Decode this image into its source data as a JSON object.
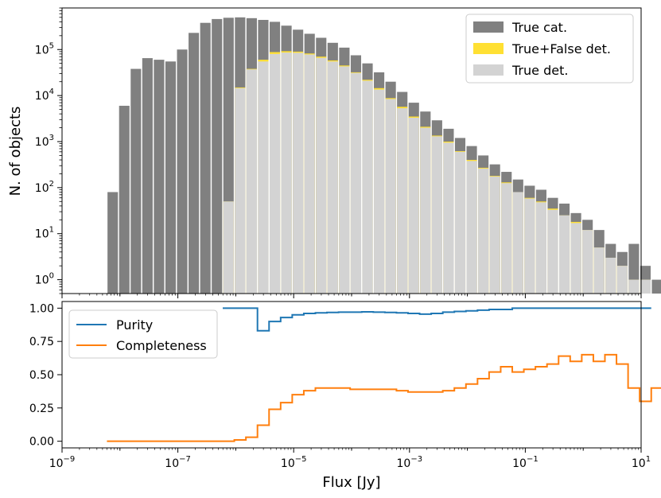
{
  "chart_data": [
    {
      "type": "bar",
      "title": "",
      "xlabel": "",
      "ylabel": "N. of objects",
      "xscale": "log",
      "yscale": "log",
      "xlim": [
        1e-09,
        10
      ],
      "ylim": [
        0.5,
        800000
      ],
      "ytick_values": [
        1,
        10,
        100,
        1000,
        10000,
        100000
      ],
      "ytick_labels": [
        {
          "base": "10",
          "exp": "0"
        },
        {
          "base": "10",
          "exp": "1"
        },
        {
          "base": "10",
          "exp": "2"
        },
        {
          "base": "10",
          "exp": "3"
        },
        {
          "base": "10",
          "exp": "4"
        },
        {
          "base": "10",
          "exp": "5"
        }
      ],
      "legend_position": "top-right",
      "bin_log_start": -8.225,
      "bin_log_width": 0.2,
      "series": [
        {
          "name": "True cat.",
          "color": "#808080",
          "values": [
            80,
            6000,
            38000,
            65000,
            60000,
            55000,
            100000,
            230000,
            380000,
            460000,
            490000,
            500000,
            480000,
            440000,
            400000,
            330000,
            270000,
            220000,
            180000,
            140000,
            110000,
            75000,
            50000,
            32000,
            20000,
            12000,
            7000,
            4500,
            2900,
            1900,
            1200,
            800,
            500,
            320,
            220,
            150,
            110,
            90,
            60,
            45,
            28,
            20,
            12,
            6,
            4,
            6,
            2,
            1,
            2,
            0,
            0
          ]
        },
        {
          "name": "True+False det.",
          "color": "#ffe033",
          "values": [
            0,
            0,
            0,
            0,
            0,
            0,
            0,
            0,
            0,
            0,
            50,
            15000,
            38000,
            60000,
            88000,
            92000,
            90000,
            82000,
            70000,
            58000,
            45000,
            32000,
            22000,
            14500,
            8800,
            5700,
            3500,
            2100,
            1350,
            1000,
            620,
            400,
            270,
            180,
            130,
            80,
            60,
            50,
            35,
            25,
            18,
            12,
            5,
            3,
            2,
            1,
            1,
            0,
            0,
            1,
            1
          ]
        },
        {
          "name": "True det.",
          "color": "#d3d3d3",
          "values": [
            0,
            0,
            0,
            0,
            0,
            0,
            0,
            0,
            0,
            0,
            50,
            14500,
            37000,
            55000,
            80000,
            86000,
            85000,
            78000,
            66000,
            55000,
            43000,
            31000,
            21000,
            13500,
            8400,
            5300,
            3300,
            2000,
            1300,
            950,
            600,
            380,
            260,
            175,
            125,
            80,
            58,
            48,
            33,
            25,
            17,
            12,
            5,
            3,
            2,
            1,
            1,
            0,
            0,
            1,
            1
          ]
        }
      ]
    },
    {
      "type": "line",
      "title": "",
      "xlabel": "Flux [Jy]",
      "ylabel": "",
      "xscale": "log",
      "xlim": [
        1e-09,
        10
      ],
      "ylim": [
        -0.05,
        1.05
      ],
      "ytick_values": [
        0.0,
        0.25,
        0.5,
        0.75,
        1.0
      ],
      "ytick_labels": [
        "0.00",
        "0.25",
        "0.50",
        "0.75",
        "1.00"
      ],
      "xtick_values": [
        1e-09,
        1e-07,
        1e-05,
        0.001,
        0.1,
        10
      ],
      "xtick_labels": [
        {
          "base": "10",
          "exp": "−9"
        },
        {
          "base": "10",
          "exp": "−7"
        },
        {
          "base": "10",
          "exp": "−5"
        },
        {
          "base": "10",
          "exp": "−3"
        },
        {
          "base": "10",
          "exp": "−1"
        },
        {
          "base": "10",
          "exp": "1"
        }
      ],
      "legend_position": "top-left",
      "step_log_start": -8.225,
      "step_log_width": 0.2,
      "series": [
        {
          "name": "Purity",
          "color": "#1f77b4",
          "values": [
            null,
            null,
            null,
            null,
            null,
            null,
            null,
            null,
            null,
            null,
            1.0,
            1.0,
            1.0,
            0.83,
            0.9,
            0.93,
            0.95,
            0.96,
            0.965,
            0.968,
            0.97,
            0.97,
            0.972,
            0.97,
            0.968,
            0.965,
            0.96,
            0.955,
            0.96,
            0.97,
            0.975,
            0.98,
            0.985,
            0.99,
            0.99,
            1.0,
            1.0,
            1.0,
            1.0,
            1.0,
            1.0,
            1.0,
            1.0,
            1.0,
            1.0,
            1.0,
            1.0,
            null,
            null,
            null,
            null
          ]
        },
        {
          "name": "Completeness",
          "color": "#ff7f0e",
          "values": [
            0.0,
            0.0,
            0.0,
            0.0,
            0.0,
            0.0,
            0.0,
            0.0,
            0.0,
            0.0,
            0.0,
            0.01,
            0.03,
            0.12,
            0.24,
            0.29,
            0.35,
            0.38,
            0.4,
            0.4,
            0.4,
            0.39,
            0.39,
            0.39,
            0.39,
            0.38,
            0.37,
            0.37,
            0.37,
            0.38,
            0.4,
            0.43,
            0.47,
            0.52,
            0.56,
            0.52,
            0.54,
            0.56,
            0.58,
            0.64,
            0.6,
            0.65,
            0.6,
            0.65,
            0.58,
            0.4,
            0.3,
            0.4,
            0.0,
            1.0,
            1.0
          ]
        }
      ]
    }
  ]
}
